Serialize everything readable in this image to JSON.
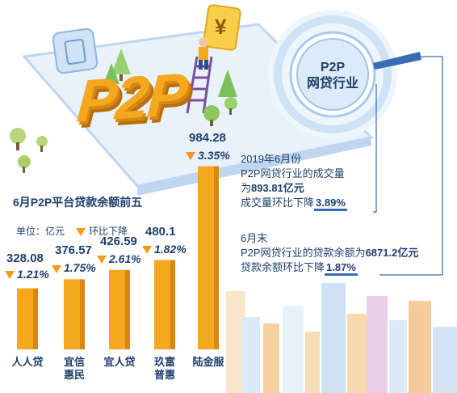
{
  "p2p_logo": "P2P",
  "coin_symbol": "¥",
  "circle": {
    "title_line1": "P2P",
    "title_line2": "网贷行业"
  },
  "stats": {
    "block1": {
      "line1": "2019年6月份",
      "line2": "P2P网贷行业的成交量",
      "line3_prefix": "为",
      "line3_value": "893.81亿元",
      "line4_prefix": "成交量环比下降",
      "line4_value": "3.89%"
    },
    "block2": {
      "line1": "6月末",
      "line2_prefix": "P2P网贷行业的贷款余额为",
      "line2_value": "6871.2亿元",
      "line3_prefix": "贷款余额环比下降",
      "line3_value": "1.87%"
    }
  },
  "chart_data": {
    "type": "bar",
    "title": "6月P2P平台贷款余额前五",
    "unit_label": "单位：亿元",
    "change_legend": "环比下降",
    "categories": [
      "人人贷",
      "宜信惠民",
      "宜人贷",
      "玖富普惠",
      "陆金服"
    ],
    "category_lines": [
      [
        "人人贷"
      ],
      [
        "宜信",
        "惠民"
      ],
      [
        "宜人贷"
      ],
      [
        "玖富",
        "普惠"
      ],
      [
        "陆金服"
      ]
    ],
    "values": [
      328.08,
      376.57,
      426.59,
      480.1,
      984.28
    ],
    "value_labels": [
      "328.08",
      "376.57",
      "426.59",
      "480.1",
      "984.28"
    ],
    "changes": [
      "1.21%",
      "1.75%",
      "2.61%",
      "1.82%",
      "3.35%"
    ],
    "ylim": [
      0,
      1000
    ],
    "colors": {
      "bar": "#f4a81d",
      "bar_dark": "#d98612",
      "arrow": "#f29a1e"
    }
  }
}
